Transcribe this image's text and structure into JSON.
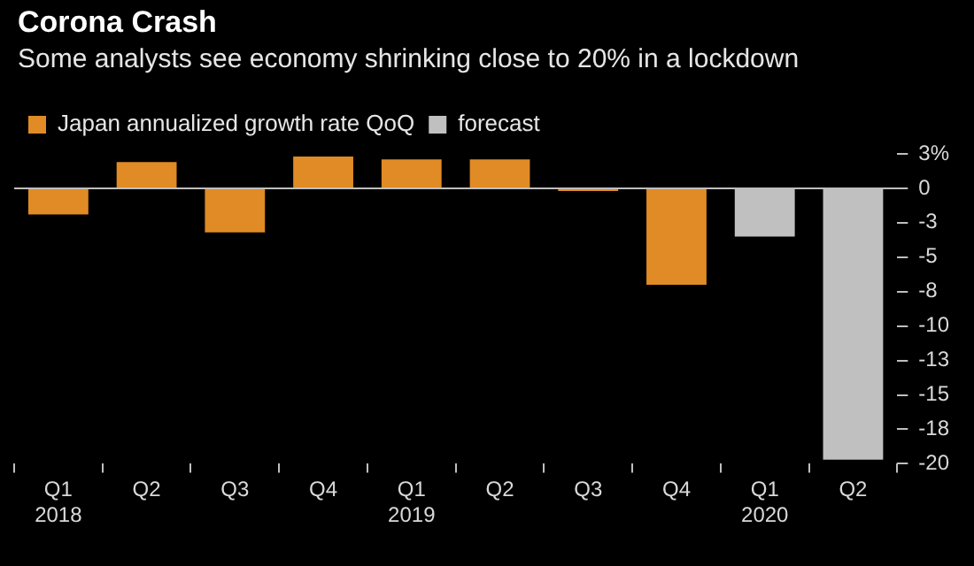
{
  "chart_data": {
    "type": "bar",
    "title": "Corona Crash",
    "subtitle": "Some analysts see economy shrinking close to 20% in a lockdown",
    "categories": [
      "Q1\n2018",
      "Q2",
      "Q3",
      "Q4",
      "Q1\n2019",
      "Q2",
      "Q3",
      "Q4",
      "Q1\n2020",
      "Q2"
    ],
    "series": [
      {
        "name": "Japan annualized growth rate QoQ",
        "color": "#e08b25",
        "values": [
          -1.9,
          1.9,
          -3.2,
          2.3,
          2.1,
          2.1,
          -0.2,
          -7.0,
          null,
          null
        ]
      },
      {
        "name": "forecast",
        "color": "#c0c0c0",
        "values": [
          null,
          null,
          null,
          null,
          null,
          null,
          null,
          null,
          -3.5,
          -19.7
        ]
      }
    ],
    "ylim": [
      -20,
      2.5
    ],
    "yticks": [
      {
        "value": 2.5,
        "label": "3%"
      },
      0,
      {
        "value": -2.5,
        "label": "-3"
      },
      -5,
      {
        "value": -7.5,
        "label": "-8"
      },
      -10,
      {
        "value": -12.5,
        "label": "-13"
      },
      -15,
      {
        "value": -17.5,
        "label": "-18"
      },
      -20
    ],
    "ref_lines": [
      {
        "axis": "y",
        "value": 0,
        "color": "#bfbfbf"
      }
    ],
    "grid": false,
    "legend": "top left"
  }
}
